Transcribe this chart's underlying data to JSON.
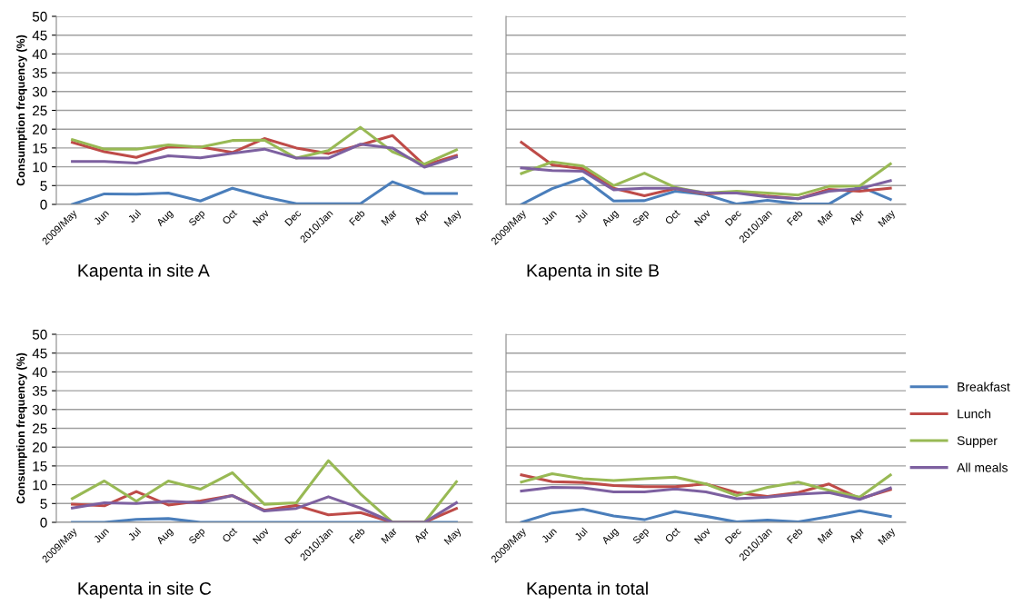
{
  "chart_data": [
    {
      "type": "line",
      "title": "Kapenta in site A",
      "ylabel": "Consumption frequency (%)",
      "categories": [
        "2009/May",
        "Jun",
        "Jul",
        "Aug",
        "Sep",
        "Oct",
        "Nov",
        "Dec",
        "2010/Jan",
        "Feb",
        "Mar",
        "Apr",
        "May"
      ],
      "ylim": [
        0,
        50
      ],
      "yticks": [
        0,
        5,
        10,
        15,
        20,
        25,
        30,
        35,
        40,
        45,
        50
      ],
      "grid": "y",
      "marker": "none",
      "line_style": "solid",
      "legend": false,
      "series": [
        {
          "color": "#4a7ebb",
          "values": [
            0,
            2.8,
            2.7,
            3,
            0.9,
            4.3,
            2,
            0.2,
            0.2,
            0.2,
            6,
            2.9,
            2.9
          ]
        },
        {
          "color": "#be4b48",
          "values": [
            16.5,
            14,
            12.5,
            15.3,
            15.3,
            13.8,
            17.5,
            15,
            13.5,
            15.8,
            18.3,
            10.4,
            13
          ]
        },
        {
          "color": "#98b954",
          "values": [
            17.2,
            14.7,
            14.7,
            15.8,
            15.2,
            17,
            17.1,
            12.3,
            14.3,
            20.5,
            14,
            10.7,
            14.5
          ]
        },
        {
          "color": "#7d60a0",
          "values": [
            11.4,
            11.4,
            11,
            12.9,
            12.4,
            13.6,
            14.7,
            12.3,
            12.3,
            16,
            15,
            9.9,
            12.6
          ]
        }
      ]
    },
    {
      "type": "line",
      "title": "Kapenta in site B",
      "categories": [
        "2009/May",
        "Jun",
        "Jul",
        "Aug",
        "Sep",
        "Oct",
        "Nov",
        "Dec",
        "2010/Jan",
        "Feb",
        "Mar",
        "Apr",
        "May"
      ],
      "ylim": [
        0,
        50
      ],
      "grid": "y",
      "marker": "none",
      "line_style": "solid",
      "legend": false,
      "tick_labels": "x",
      "series": [
        {
          "color": "#4a7ebb",
          "values": [
            0,
            4.2,
            7,
            0.9,
            1,
            3.5,
            2.6,
            0.1,
            1.1,
            0.1,
            0.1,
            4.8,
            1.3
          ]
        },
        {
          "color": "#be4b48",
          "values": [
            16.5,
            10.5,
            9.5,
            4.3,
            2.3,
            4.2,
            2.8,
            3.2,
            2.2,
            1.5,
            4,
            3.5,
            4.3
          ]
        },
        {
          "color": "#98b954",
          "values": [
            8.2,
            11.3,
            10.2,
            5,
            8.3,
            4.5,
            3,
            3.5,
            3,
            2.5,
            4.8,
            4.9,
            10.8
          ]
        },
        {
          "color": "#7d60a0",
          "values": [
            9.7,
            9,
            8.8,
            3.9,
            4.3,
            4.3,
            3,
            3,
            2,
            1.5,
            3.5,
            4.2,
            6.3
          ]
        }
      ]
    },
    {
      "type": "line",
      "title": "Kapenta in site C",
      "ylabel": "Consumption frequency (%)",
      "categories": [
        "2009/May",
        "Jun",
        "Jul",
        "Aug",
        "Sep",
        "Oct",
        "Nov",
        "Dec",
        "2010/Jan",
        "Feb",
        "Mar",
        "Apr",
        "May"
      ],
      "ylim": [
        0,
        50
      ],
      "yticks": [
        0,
        5,
        10,
        15,
        20,
        25,
        30,
        35,
        40,
        45,
        50
      ],
      "grid": "y",
      "marker": "none",
      "line_style": "solid",
      "legend": false,
      "series": [
        {
          "color": "#4a7ebb",
          "values": [
            0,
            0,
            0.8,
            1,
            0,
            0,
            0,
            0,
            0,
            0,
            0,
            0,
            0
          ]
        },
        {
          "color": "#be4b48",
          "values": [
            4.8,
            4.4,
            8.2,
            4.6,
            5.7,
            7.1,
            3.2,
            4.5,
            2,
            2.6,
            0,
            0,
            3.7
          ]
        },
        {
          "color": "#98b954",
          "values": [
            6.3,
            11,
            5.6,
            11,
            8.8,
            13.2,
            4.8,
            5.2,
            16.4,
            7.6,
            0,
            0,
            10.8
          ]
        },
        {
          "color": "#7d60a0",
          "values": [
            3.8,
            5.2,
            5,
            5.6,
            5.2,
            7.1,
            3,
            3.7,
            6.8,
            3.8,
            0,
            0,
            5.2
          ]
        }
      ]
    },
    {
      "type": "line",
      "title": "Kapenta in total",
      "categories": [
        "2009/May",
        "Jun",
        "Jul",
        "Aug",
        "Sep",
        "Oct",
        "Nov",
        "Dec",
        "2010/Jan",
        "Feb",
        "Mar",
        "Apr",
        "May"
      ],
      "ylim": [
        0,
        50
      ],
      "grid": "y",
      "marker": "none",
      "line_style": "solid",
      "legend": "right",
      "tick_labels": "x",
      "series": [
        {
          "name": "Breakfast",
          "color": "#4a7ebb",
          "values": [
            0,
            2.5,
            3.5,
            1.7,
            0.7,
            2.9,
            1.6,
            0.1,
            0.6,
            0.1,
            1.5,
            3.1,
            1.6
          ]
        },
        {
          "name": "Lunch",
          "color": "#be4b48",
          "values": [
            12.6,
            10.8,
            10.6,
            9.8,
            9.5,
            9.5,
            10.2,
            7.9,
            6.9,
            7.9,
            10.2,
            6.3,
            8.7
          ]
        },
        {
          "name": "Supper",
          "color": "#98b954",
          "values": [
            10.7,
            12.9,
            11.6,
            11.1,
            11.6,
            12,
            10.2,
            7.1,
            9.3,
            10.7,
            8.5,
            6.7,
            12.6
          ]
        },
        {
          "name": "All meals",
          "color": "#7d60a0",
          "values": [
            8.3,
            9.3,
            9.2,
            8.1,
            8.1,
            8.9,
            8.1,
            6.3,
            6.7,
            7.5,
            7.9,
            6.1,
            9.1
          ]
        }
      ]
    }
  ]
}
